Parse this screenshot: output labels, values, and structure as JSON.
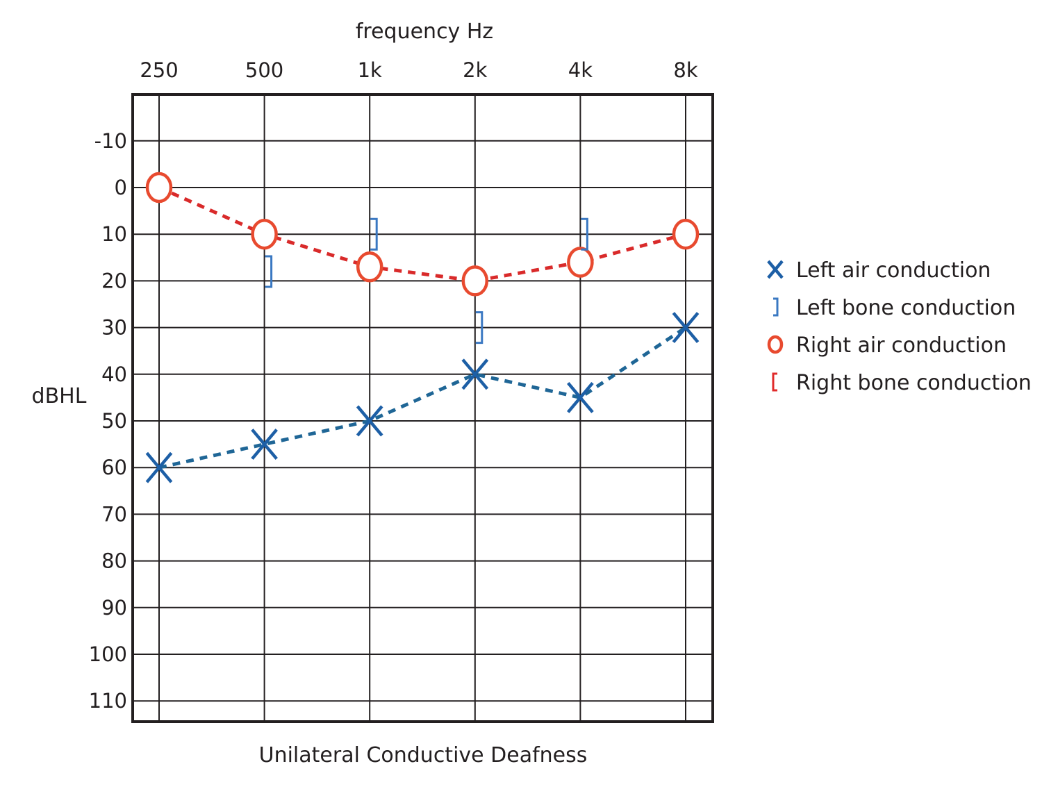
{
  "chart_data": {
    "type": "line",
    "title": "Unilateral Conductive Deafness",
    "xlabel": "frequency Hz",
    "ylabel": "dBHL",
    "categories": [
      "250",
      "500",
      "1k",
      "2k",
      "4k",
      "8k"
    ],
    "y_ticks": [
      "-10",
      "0",
      "10",
      "20",
      "30",
      "40",
      "50",
      "60",
      "70",
      "80",
      "90",
      "100",
      "110"
    ],
    "ylim": [
      -20,
      115
    ],
    "y_inverted": true,
    "grid": true,
    "legend_position": "right",
    "series": [
      {
        "name": "Left air conduction",
        "symbol": "X",
        "color": "#1d5fa6",
        "line_color": "#1f6696",
        "values": [
          60,
          55,
          50,
          40,
          45,
          30
        ]
      },
      {
        "name": "Right air conduction",
        "symbol": "O",
        "color": "#e84a2f",
        "line_color": "#d92a2a",
        "values": [
          0,
          10,
          17,
          20,
          16,
          10
        ]
      },
      {
        "name": "Left bone conduction",
        "symbol": "]",
        "color": "#3a78c2",
        "points": [
          {
            "category": "500",
            "value": 18
          },
          {
            "category": "1k",
            "value": 10
          },
          {
            "category": "2k",
            "value": 30
          },
          {
            "category": "4k",
            "value": 10
          }
        ]
      }
    ],
    "legend": [
      {
        "symbol": "X",
        "label": "Left air conduction",
        "color": "#1d5fa6"
      },
      {
        "symbol": "]",
        "label": "Left bone conduction",
        "color": "#3a78c2"
      },
      {
        "symbol": "O",
        "label": "Right air conduction",
        "color": "#e84a2f"
      },
      {
        "symbol": "[",
        "label": "Right bone conduction",
        "color": "#e02b2b"
      }
    ]
  }
}
